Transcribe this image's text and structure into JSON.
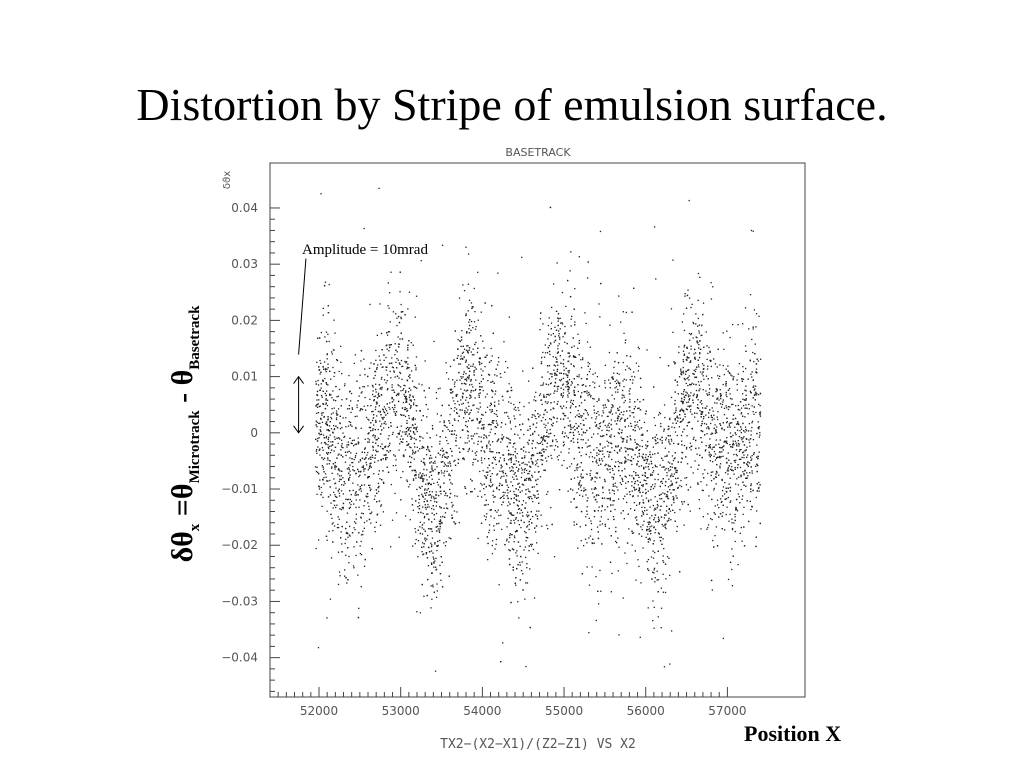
{
  "slide": {
    "title": "Distortion by Stripe of emulsion surface.",
    "position_label": "Position X",
    "ylabel": {
      "delta_theta": "δθ",
      "x_sub": "x",
      "eq_theta": " =θ",
      "micro_sub": "Microtrack",
      "minus_theta": " - θ",
      "base_sub": "Basetrack"
    }
  },
  "chart_data": {
    "type": "scatter",
    "title": "BASETRACK",
    "ylabel_small": "δϑx",
    "xlabel": "TX2−(X2−X1)/(Z2−Z1) VS X2",
    "xlim": [
      51400,
      57950
    ],
    "ylim": [
      -0.047,
      0.048
    ],
    "x_ticks": [
      52000,
      53000,
      54000,
      55000,
      56000,
      57000
    ],
    "x_tick_labels": [
      "52000",
      "53000",
      "54000",
      "55000",
      "56000",
      "57000"
    ],
    "y_ticks": [
      0.04,
      0.03,
      0.02,
      0.01,
      0,
      -0.01,
      -0.02,
      -0.03,
      -0.04
    ],
    "y_tick_labels": [
      "0.04",
      "0.03",
      "0.02",
      "0.01",
      "0",
      "−0.01",
      "−0.02",
      "−0.03",
      "−0.04"
    ],
    "x_data_range": [
      51950,
      57400
    ],
    "stripe_centers": [
      {
        "x": 51950,
        "y": 0.004
      },
      {
        "x": 52400,
        "y": -0.008
      },
      {
        "x": 52950,
        "y": 0.008
      },
      {
        "x": 53400,
        "y": -0.014
      },
      {
        "x": 53800,
        "y": 0.008
      },
      {
        "x": 54150,
        "y": -0.004
      },
      {
        "x": 54500,
        "y": -0.012
      },
      {
        "x": 54900,
        "y": 0.009
      },
      {
        "x": 55350,
        "y": -0.004
      },
      {
        "x": 55750,
        "y": 0.0
      },
      {
        "x": 56150,
        "y": -0.013
      },
      {
        "x": 56550,
        "y": 0.008
      },
      {
        "x": 57000,
        "y": -0.004
      },
      {
        "x": 57400,
        "y": 0.002
      }
    ],
    "spread": 0.011,
    "n_points": 6000,
    "annotation": {
      "text": "Amplitude = 10mrad",
      "arrow_from": 0.01,
      "arrow_to": 0.0,
      "arrow_x": 51750,
      "pointer_x": 51840,
      "pointer_y": 0.031
    },
    "colors": {
      "points": "#222222",
      "axes": "#444444",
      "text": "#555555"
    }
  }
}
